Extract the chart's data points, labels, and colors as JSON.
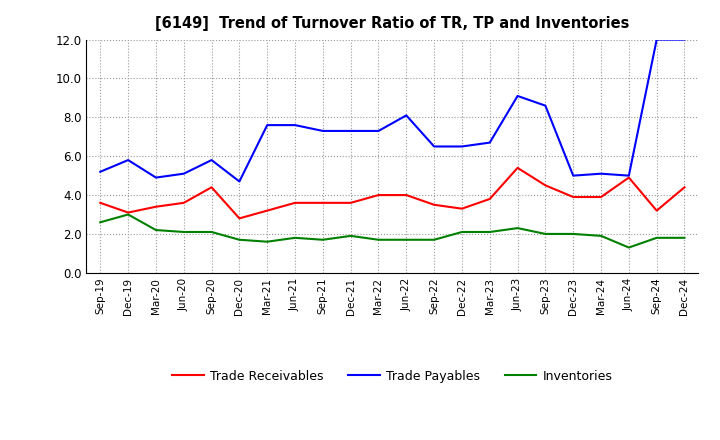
{
  "title": "[6149]  Trend of Turnover Ratio of TR, TP and Inventories",
  "x_labels": [
    "Sep-19",
    "Dec-19",
    "Mar-20",
    "Jun-20",
    "Sep-20",
    "Dec-20",
    "Mar-21",
    "Jun-21",
    "Sep-21",
    "Dec-21",
    "Mar-22",
    "Jun-22",
    "Sep-22",
    "Dec-22",
    "Mar-23",
    "Jun-23",
    "Sep-23",
    "Dec-23",
    "Mar-24",
    "Jun-24",
    "Sep-24",
    "Dec-24"
  ],
  "trade_receivables": [
    3.6,
    3.1,
    3.4,
    3.6,
    4.4,
    2.8,
    3.2,
    3.6,
    3.6,
    3.6,
    4.0,
    4.0,
    3.5,
    3.3,
    3.8,
    5.4,
    4.5,
    3.9,
    3.9,
    4.9,
    3.2,
    4.4
  ],
  "trade_payables": [
    5.2,
    5.8,
    4.9,
    5.1,
    5.8,
    4.7,
    7.6,
    7.6,
    7.3,
    7.3,
    7.3,
    8.1,
    6.5,
    6.5,
    6.7,
    9.1,
    8.6,
    5.0,
    5.1,
    5.0,
    12.0,
    12.0
  ],
  "inventories": [
    2.6,
    3.0,
    2.2,
    2.1,
    2.1,
    1.7,
    1.6,
    1.8,
    1.7,
    1.9,
    1.7,
    1.7,
    1.7,
    2.1,
    2.1,
    2.3,
    2.0,
    2.0,
    1.9,
    1.3,
    1.8,
    1.8
  ],
  "ylim": [
    0.0,
    12.0
  ],
  "yticks": [
    0.0,
    2.0,
    4.0,
    6.0,
    8.0,
    10.0,
    12.0
  ],
  "tr_color": "#ff0000",
  "tp_color": "#0000ff",
  "inv_color": "#008000",
  "background_color": "#ffffff",
  "grid_color": "#999999",
  "legend_labels": [
    "Trade Receivables",
    "Trade Payables",
    "Inventories"
  ]
}
